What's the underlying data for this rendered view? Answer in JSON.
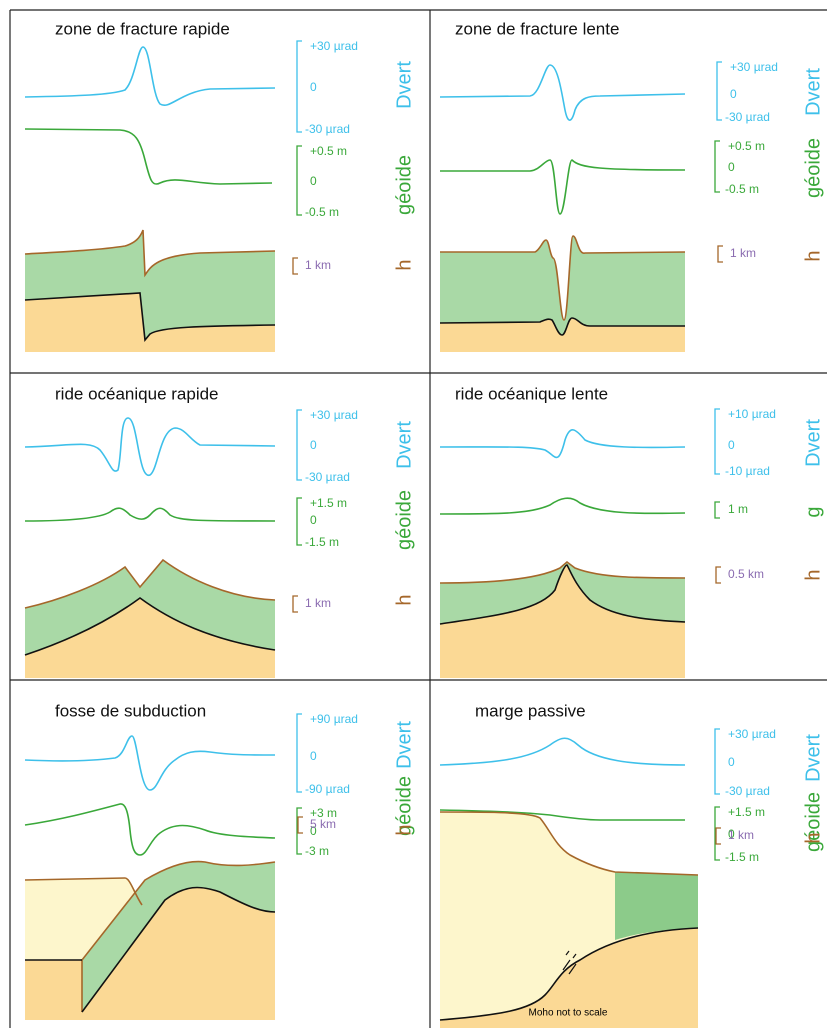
{
  "panels": [
    {
      "title": "zone de fracture rapide",
      "dvert": {
        "top": "+30 µrad",
        "zero": "0",
        "bottom": "-30 µrad",
        "name": "Dvert"
      },
      "geoid": {
        "top": "+0.5 m",
        "zero": "0",
        "bottom": "-0.5 m",
        "name": "géoide"
      },
      "h": {
        "scale": "1 km",
        "name": "h"
      }
    },
    {
      "title": "zone de fracture lente",
      "dvert": {
        "top": "+30 µrad",
        "zero": "0",
        "bottom": "-30 µrad",
        "name": "Dvert"
      },
      "geoid": {
        "top": "+0.5 m",
        "zero": "0",
        "bottom": "-0.5 m",
        "name": "géoide"
      },
      "h": {
        "scale": "1 km",
        "name": "h"
      }
    },
    {
      "title": "ride océanique rapide",
      "dvert": {
        "top": "+30 µrad",
        "zero": "0",
        "bottom": "-30 µrad",
        "name": "Dvert"
      },
      "geoid": {
        "top": "+1.5 m",
        "zero": "0",
        "bottom": "-1.5 m",
        "name": "géoide"
      },
      "h": {
        "scale": "1 km",
        "name": "h"
      }
    },
    {
      "title": "ride océanique lente",
      "dvert": {
        "top": "+10 µrad",
        "zero": "0",
        "bottom": "-10 µrad",
        "name": "Dvert"
      },
      "geoid": {
        "scale": "1 m",
        "name": "g"
      },
      "h": {
        "scale": "0.5 km",
        "name": "h"
      }
    },
    {
      "title": "fosse de subduction",
      "dvert": {
        "top": "+90 µrad",
        "zero": "0",
        "bottom": "-90 µrad",
        "name": "Dvert"
      },
      "geoid": {
        "top": "+3 m",
        "zero": "0",
        "bottom": "-3 m",
        "name": "géoide"
      },
      "h": {
        "scale": "5 km",
        "name": "h"
      }
    },
    {
      "title": "marge passive",
      "dvert": {
        "top": "+30 µrad",
        "zero": "0",
        "bottom": "-30 µrad",
        "name": "Dvert"
      },
      "geoid": {
        "top": "+1.5 m",
        "zero": "0",
        "bottom": "-1.5 m",
        "name": "géoide"
      },
      "h": {
        "scale": "1 km",
        "name": "h"
      }
    }
  ],
  "note": "Moho not to scale"
}
